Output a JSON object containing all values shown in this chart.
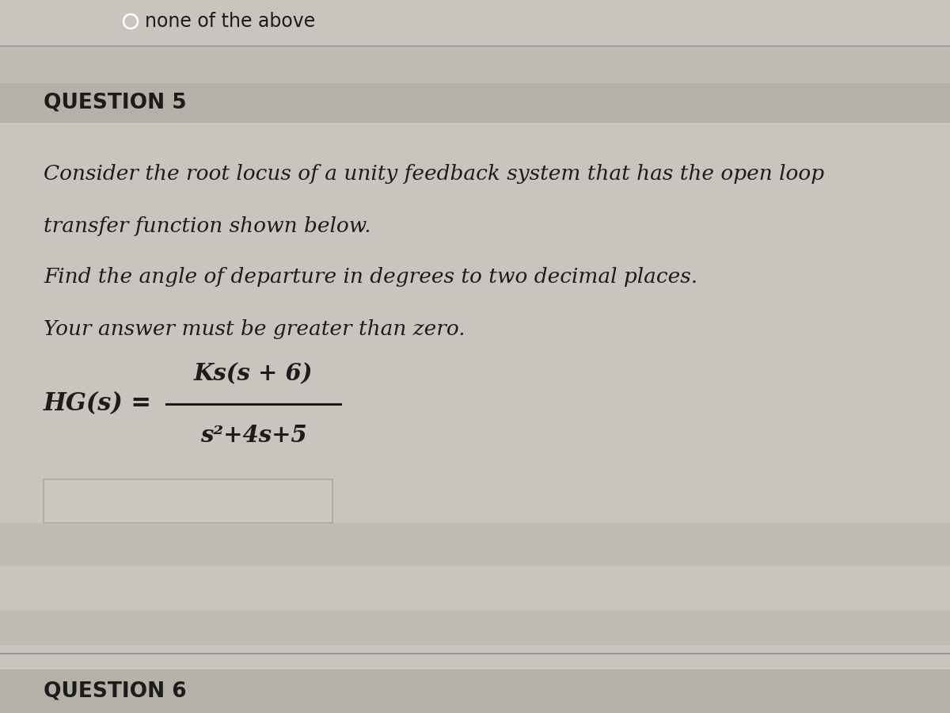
{
  "bg_color": "#c9c5be",
  "header_bg": "#b5b0a8",
  "top_text": "none of the above",
  "question5_label": "QUESTION 5",
  "question6_label": "QUESTION 6",
  "body_lines": [
    "Consider the root locus of a unity feedback system that has the open loop",
    "transfer function shown below.",
    "Find the angle of departure in degrees to two decimal places.",
    "Your answer must be greater than zero."
  ],
  "hg_label": "HG(s) =",
  "numerator": "Ks(s + 6)",
  "denominator": "s²+4s+5",
  "text_color": "#1c1c1c",
  "separator_color": "#999999",
  "line_color": "#555555",
  "answer_box_color": "#ccc8c0",
  "answer_box_edge": "#aaa8a0",
  "row_alt_color": "#bfbcb5",
  "font_size_body": 19,
  "font_size_q_label": 17,
  "font_size_formula": 21,
  "font_size_top": 17,
  "figwidth": 12.0,
  "figheight": 9.0,
  "dpi": 100
}
